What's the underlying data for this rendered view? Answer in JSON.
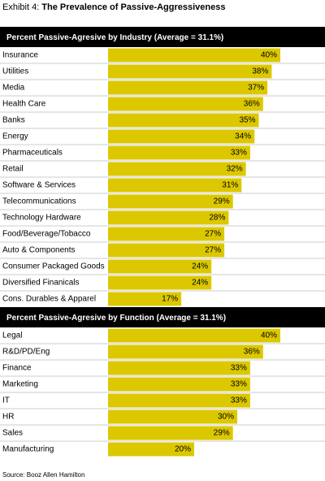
{
  "exhibit": "Exhibit 4:",
  "title": "The Prevalence of Passive-Aggressiveness",
  "source": "Source: Booz Allen Hamilton",
  "chart_data": [
    {
      "type": "bar",
      "title": "Percent Passive-Agresive by Industry (Average = 31.1%)",
      "categories": [
        "Insurance",
        "Utilities",
        "Media",
        "Health Care",
        "Banks",
        "Energy",
        "Pharmaceuticals",
        "Retail",
        "Software & Services",
        "Telecommunications",
        "Technology Hardware",
        "Food/Beverage/Tobacco",
        "Auto & Components",
        "Consumer Packaged Goods",
        "Diversified Finanicals",
        "Cons. Durables & Apparel"
      ],
      "values": [
        40,
        38,
        37,
        36,
        35,
        34,
        33,
        32,
        31,
        29,
        28,
        27,
        27,
        24,
        24,
        17
      ],
      "value_labels": [
        "40%",
        "38%",
        "37%",
        "36%",
        "35%",
        "34%",
        "33%",
        "32%",
        "31%",
        "29%",
        "28%",
        "27%",
        "27%",
        "24%",
        "24%",
        "17%"
      ],
      "color": "#dcc800"
    },
    {
      "type": "bar",
      "title": "Percent Passive-Agresive by Function (Average = 31.1%)",
      "categories": [
        "Legal",
        "R&D/PD/Eng",
        "Finance",
        "Marketing",
        "IT",
        "HR",
        "Sales",
        "Manufacturing"
      ],
      "values": [
        40,
        36,
        33,
        33,
        33,
        30,
        29,
        20
      ],
      "value_labels": [
        "40%",
        "36%",
        "33%",
        "33%",
        "33%",
        "30%",
        "29%",
        "20%"
      ],
      "color": "#dcc800"
    }
  ]
}
